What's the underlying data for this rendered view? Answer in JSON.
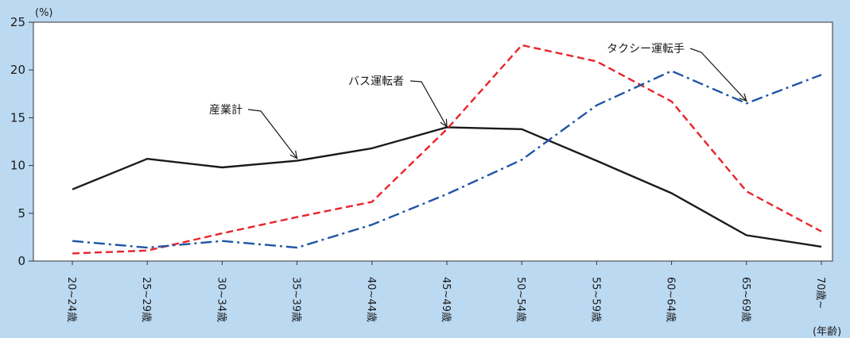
{
  "chart_data": {
    "type": "line",
    "y_unit": "(%)",
    "x_unit": "(年齢)",
    "categories": [
      "20~24歳",
      "25~29歳",
      "30~34歳",
      "35~39歳",
      "40~44歳",
      "45~49歳",
      "50~54歳",
      "55~59歳",
      "60~64歳",
      "65~69歳",
      "70歳~"
    ],
    "ylim": [
      0,
      25
    ],
    "yticks": [
      0,
      5,
      10,
      15,
      20,
      25
    ],
    "grid": false,
    "series": [
      {
        "name": "産業計",
        "color": "#1a1a1a",
        "style": "solid",
        "values": [
          7.5,
          10.7,
          9.8,
          10.5,
          11.8,
          14.0,
          13.8,
          10.5,
          7.1,
          2.7,
          1.5
        ]
      },
      {
        "name": "バス運転者",
        "color": "#e8242a",
        "style": "dashed",
        "values": [
          0.8,
          1.1,
          2.9,
          4.6,
          6.2,
          13.8,
          22.6,
          20.9,
          16.7,
          7.3,
          3.1
        ]
      },
      {
        "name": "タクシー運転手",
        "color": "#1f55a6",
        "style": "dashdot",
        "values": [
          2.1,
          1.4,
          2.1,
          1.4,
          3.8,
          7.0,
          10.6,
          16.3,
          19.9,
          16.5,
          19.5
        ]
      }
    ],
    "annotations": [
      {
        "text": "産業計",
        "series": 0,
        "target_index": 3
      },
      {
        "text": "バス運転者",
        "series": 1,
        "target_index": 5
      },
      {
        "text": "タクシー運転手",
        "series": 2,
        "target_index": 9
      }
    ]
  }
}
